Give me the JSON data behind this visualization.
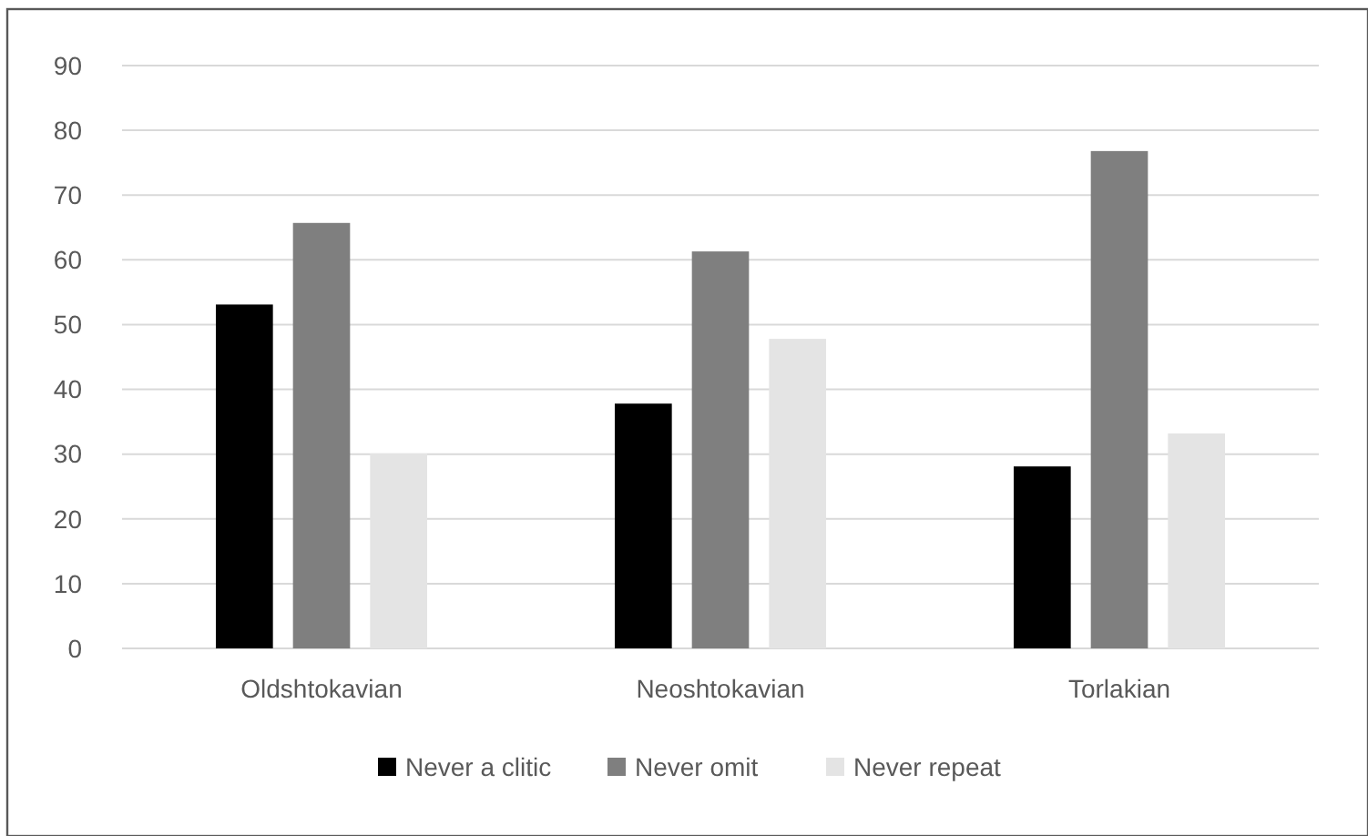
{
  "chart_data": {
    "type": "bar",
    "categories": [
      "Oldshtokavian",
      "Neoshtokavian",
      "Torlakian"
    ],
    "series": [
      {
        "name": "Never a clitic",
        "color": "#000000",
        "values": [
          53.1,
          37.8,
          28.1
        ]
      },
      {
        "name": "Never omit",
        "color": "#7f7f7f",
        "values": [
          65.7,
          61.3,
          76.8
        ]
      },
      {
        "name": "Never repeat",
        "color": "#e4e4e4",
        "values": [
          30.1,
          47.8,
          33.2
        ]
      }
    ],
    "ylim": [
      0,
      90
    ],
    "yticks": [
      0,
      10,
      20,
      30,
      40,
      50,
      60,
      70,
      80,
      90
    ],
    "grid": "y",
    "legend": "bottom"
  }
}
